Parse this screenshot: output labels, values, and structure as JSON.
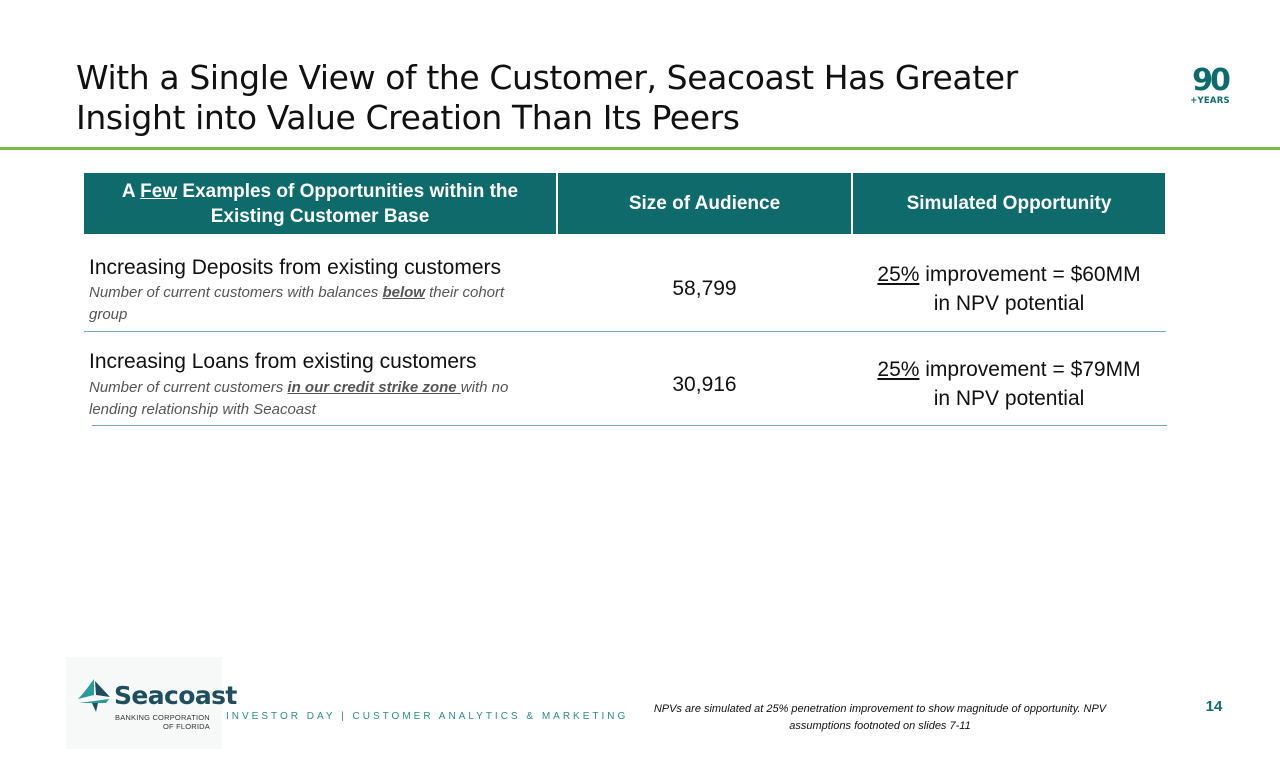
{
  "title": {
    "line1": "With a Single View of the Customer, Seacoast Has Greater",
    "line2": "Insight into Value Creation Than Its Peers"
  },
  "badge": {
    "number": "90",
    "label": "+YEARS"
  },
  "table": {
    "headers": {
      "col1_prefix": "A ",
      "col1_emph": "Few",
      "col1_rest": " Examples of Opportunities within the Existing Customer Base",
      "col2": "Size of Audience",
      "col3": "Simulated Opportunity"
    },
    "rows": [
      {
        "title": "Increasing Deposits from existing customers",
        "sub_before": "Number of current customers with balances ",
        "sub_emph": "below",
        "sub_after": " their cohort group",
        "audience": "58,799",
        "opp_pct": "25%",
        "opp_line1": " improvement = $60MM",
        "opp_line2": "in NPV potential"
      },
      {
        "title": "Increasing Loans from existing customers",
        "sub_before": "Number of current customers ",
        "sub_emph": "in our credit strike zone ",
        "sub_after": "with no lending relationship with Seacoast",
        "audience": "30,916",
        "opp_pct": "25%",
        "opp_line1": " improvement = $79MM",
        "opp_line2": "in NPV potential"
      }
    ]
  },
  "footer": {
    "logo_name": "Seacoast",
    "logo_sub1": "BANKING CORPORATION",
    "logo_sub2": "OF FLORIDA",
    "tagline": "INVESTOR DAY | CUSTOMER ANALYTICS & MARKETING",
    "footnote": "NPVs are simulated at 25% penetration improvement to show magnitude of opportunity.  NPV assumptions footnoted on slides 7-11",
    "page_number": "14"
  },
  "colors": {
    "header_teal": "#0f6b6b",
    "accent_green": "#7ab648",
    "divider": "#7aa7b5"
  }
}
